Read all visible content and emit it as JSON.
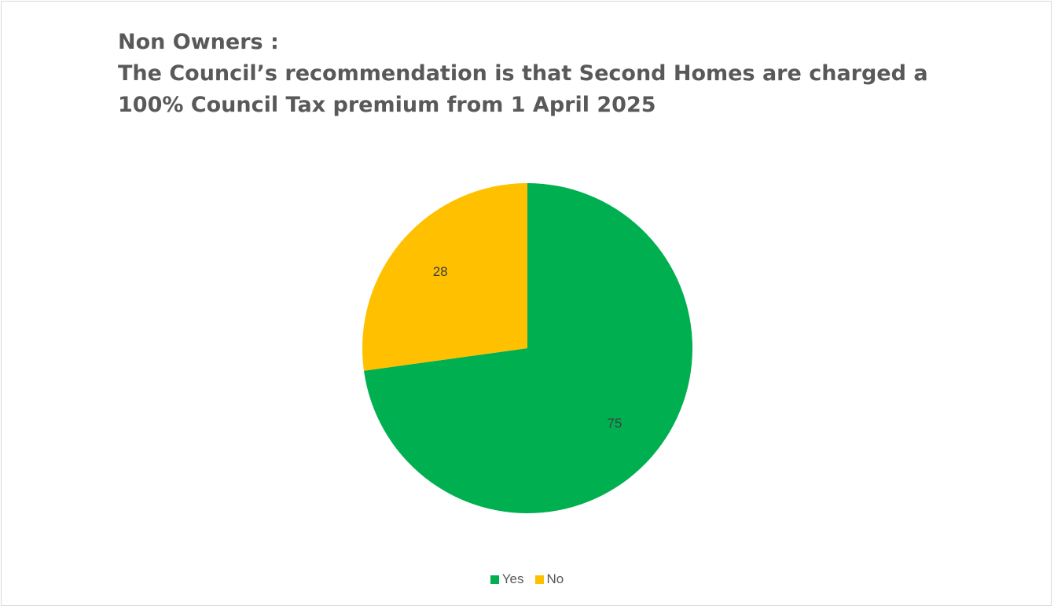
{
  "chart_data": {
    "type": "pie",
    "title_lines": [
      "Non Owners :",
      "The Council’s recommendation is that Second Homes are charged a",
      "100% Council Tax premium from 1 April 2025"
    ],
    "categories": [
      "Yes",
      "No"
    ],
    "values": [
      75,
      28
    ],
    "colors": [
      "#00b050",
      "#ffc000"
    ],
    "data_labels": [
      "75",
      "28"
    ],
    "start_angle_deg": 0,
    "direction": "clockwise",
    "legend_position": "bottom"
  }
}
